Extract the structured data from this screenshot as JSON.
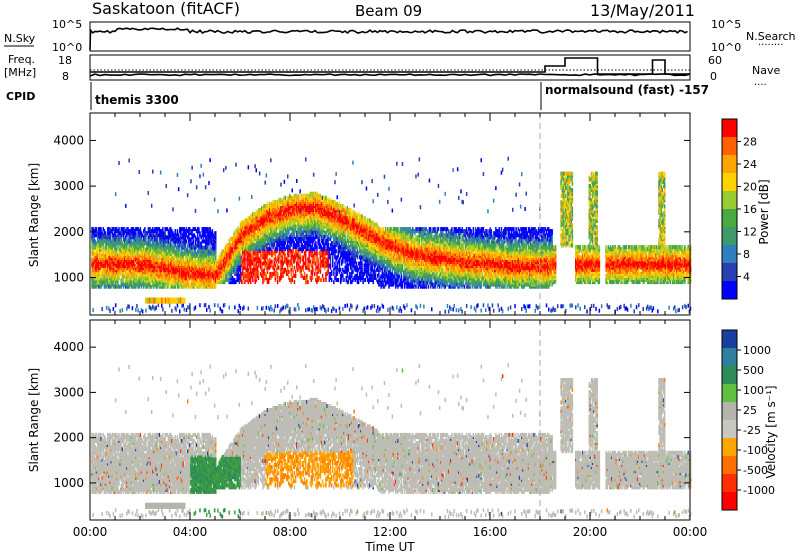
{
  "header": {
    "station": "Saskatoon (fitACF)",
    "beam": "Beam 09",
    "date": "13/May/2011"
  },
  "top_panels": {
    "nsky": {
      "label": "N.Sky",
      "tick_top": "10^5",
      "tick_bottom": "10^0",
      "right_label": "N.Search",
      "right_tick_top": "10^5",
      "right_tick_bottom": "10^0",
      "right_dots": "........"
    },
    "freq": {
      "label": "Freq.",
      "unit": "[MHz]",
      "tick_top": "18",
      "tick_bottom": "8",
      "right_label": "Nave",
      "right_tick_top": "60",
      "right_tick_bottom": "0",
      "right_dots": "...."
    },
    "cpid": {
      "label": "CPID",
      "mode1": "themis 3300",
      "mode2": "normalsound (fast) -157"
    }
  },
  "chart_data": [
    {
      "type": "heatmap",
      "title": "",
      "ylabel": "Slant Range [km]",
      "xlabel": "",
      "ylim": [
        180,
        4600
      ],
      "yticks": [
        "1000",
        "2000",
        "3000",
        "4000"
      ],
      "xticks": [
        "00:00",
        "04:00",
        "08:00",
        "12:00",
        "16:00",
        "20:00",
        "00:00"
      ],
      "colorbar": {
        "label": "Power [dB]",
        "ticks": [
          "4",
          "8",
          "12",
          "16",
          "20",
          "24",
          "28"
        ],
        "colors": [
          "#0000ff",
          "#2a3fb0",
          "#2f7fbf",
          "#3f9a6a",
          "#4aaa40",
          "#9acd32",
          "#ffd200",
          "#ffa500",
          "#ff6000",
          "#ff0000"
        ]
      },
      "mode_change_hour": 18.0,
      "main_band": [
        {
          "t": 0,
          "r": 1300
        },
        {
          "t": 2,
          "r": 1300
        },
        {
          "t": 4,
          "r": 1100
        },
        {
          "t": 5,
          "r": 1050
        },
        {
          "t": 6,
          "r": 1900
        },
        {
          "t": 7,
          "r": 2300
        },
        {
          "t": 8,
          "r": 2500
        },
        {
          "t": 9,
          "r": 2550
        },
        {
          "t": 10,
          "r": 2300
        },
        {
          "t": 11,
          "r": 2000
        },
        {
          "t": 12,
          "r": 1700
        },
        {
          "t": 13,
          "r": 1500
        },
        {
          "t": 15,
          "r": 1350
        },
        {
          "t": 17,
          "r": 1250
        },
        {
          "t": 18.5,
          "r": 1250
        }
      ]
    },
    {
      "type": "heatmap",
      "title": "",
      "ylabel": "Slant Range [km]",
      "xlabel": "Time UT",
      "ylim": [
        180,
        4600
      ],
      "yticks": [
        "1000",
        "2000",
        "3000",
        "4000"
      ],
      "xticks": [
        "00:00",
        "04:00",
        "08:00",
        "12:00",
        "16:00",
        "20:00",
        "00:00"
      ],
      "colorbar": {
        "label": "Velocity [m s⁻¹]",
        "ticks": [
          "1000",
          "500",
          "100",
          "25",
          "-25",
          "-100",
          "-500",
          "-1000"
        ],
        "colors": [
          "#1a3fa0",
          "#2f7f9f",
          "#2e8b57",
          "#5fbf3f",
          "#b4b4aa",
          "#c8c8c0",
          "#ffa500",
          "#ff7000",
          "#ff3000",
          "#ff0000"
        ]
      },
      "mode_change_hour": 18.0
    }
  ]
}
